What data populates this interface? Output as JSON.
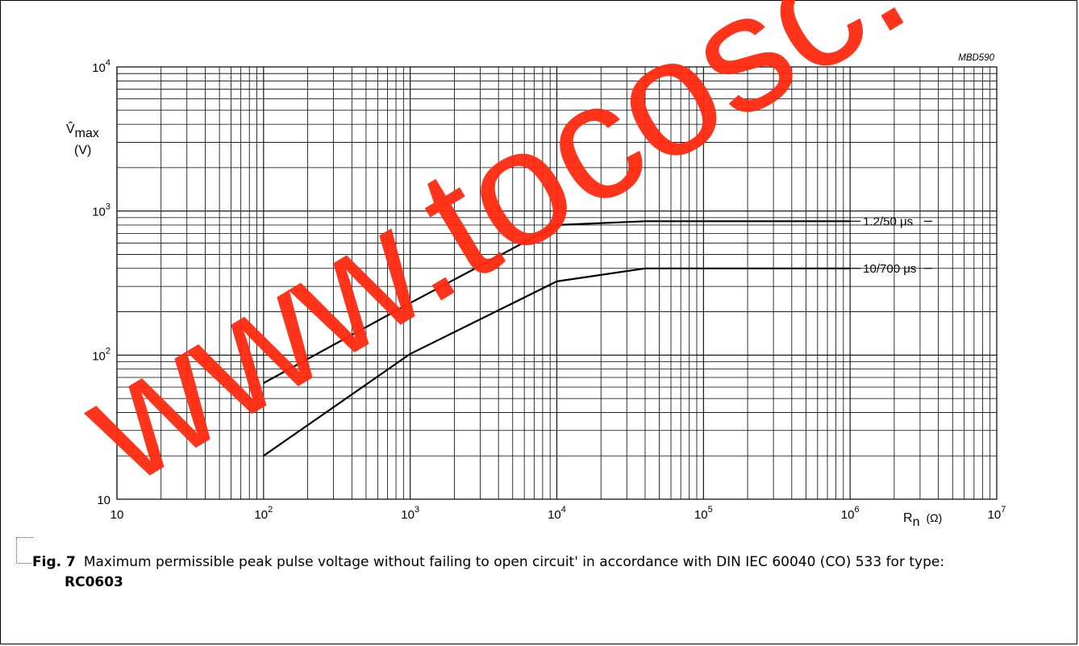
{
  "figure_code": "MBD590",
  "caption": {
    "fig_label": "Fig. 7",
    "text": "Maximum permissible peak pulse voltage without failing to open circuit' in accordance with DIN IEC 60040 (CO) 533 for type:",
    "type_name": "RC0603"
  },
  "watermark": {
    "text": "www.tocosc.co",
    "color": "#ff2a0f"
  },
  "chart_data": {
    "type": "line",
    "xscale": "log",
    "yscale": "log",
    "xlim": [
      10,
      10000000
    ],
    "ylim": [
      10,
      10000
    ],
    "grid": true,
    "xlabel": {
      "main": "R",
      "sub": "n",
      "unit": "(Ω)"
    },
    "ylabel": {
      "main": "V̂",
      "sub": "max",
      "unit": "(V)"
    },
    "x_ticks": [
      {
        "value": 10,
        "base": "10",
        "exp": ""
      },
      {
        "value": 100,
        "base": "10",
        "exp": "2"
      },
      {
        "value": 1000,
        "base": "10",
        "exp": "3"
      },
      {
        "value": 10000,
        "base": "10",
        "exp": "4"
      },
      {
        "value": 100000,
        "base": "10",
        "exp": "5"
      },
      {
        "value": 1000000,
        "base": "10",
        "exp": "6"
      },
      {
        "value": 10000000,
        "base": "10",
        "exp": "7"
      }
    ],
    "y_ticks": [
      {
        "value": 10,
        "base": "10",
        "exp": ""
      },
      {
        "value": 100,
        "base": "10",
        "exp": "2"
      },
      {
        "value": 1000,
        "base": "10",
        "exp": "3"
      },
      {
        "value": 10000,
        "base": "10",
        "exp": "4"
      }
    ],
    "series": [
      {
        "name": "1.2/50 μs",
        "x": [
          100,
          1000,
          10000,
          40000,
          1000000
        ],
        "y": [
          64,
          230,
          800,
          850,
          850
        ]
      },
      {
        "name": "10/700 μs",
        "x": [
          100,
          1000,
          10000,
          40000,
          1000000
        ],
        "y": [
          20,
          102,
          325,
          400,
          400
        ]
      }
    ]
  }
}
